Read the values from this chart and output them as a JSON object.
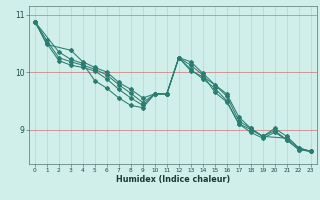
{
  "xlabel": "Humidex (Indice chaleur)",
  "bg_color": "#d0eeea",
  "grid_color_v": "#b0d8d0",
  "grid_color_h": "#cc8888",
  "line_color": "#2a7d70",
  "xlim": [
    -0.5,
    23.5
  ],
  "ylim": [
    8.4,
    11.15
  ],
  "yticks": [
    9,
    10,
    11
  ],
  "xticks": [
    0,
    1,
    2,
    3,
    4,
    5,
    6,
    7,
    8,
    9,
    10,
    11,
    12,
    13,
    14,
    15,
    16,
    17,
    18,
    19,
    20,
    21,
    22,
    23
  ],
  "series1": [
    [
      0,
      10.88
    ],
    [
      1,
      10.55
    ],
    [
      2,
      10.25
    ],
    [
      3,
      10.18
    ],
    [
      4,
      10.12
    ],
    [
      5,
      10.05
    ],
    [
      6,
      9.95
    ],
    [
      7,
      9.78
    ],
    [
      8,
      9.63
    ],
    [
      9,
      9.47
    ],
    [
      10,
      9.62
    ],
    [
      11,
      9.62
    ],
    [
      12,
      10.25
    ],
    [
      13,
      10.02
    ],
    [
      14,
      9.92
    ],
    [
      15,
      9.78
    ],
    [
      16,
      9.62
    ],
    [
      17,
      9.22
    ],
    [
      18,
      9.02
    ],
    [
      19,
      8.88
    ],
    [
      20,
      9.02
    ],
    [
      21,
      8.88
    ],
    [
      22,
      8.68
    ],
    [
      23,
      8.62
    ]
  ],
  "series2": [
    [
      0,
      10.88
    ],
    [
      1,
      10.5
    ],
    [
      2,
      10.2
    ],
    [
      3,
      10.12
    ],
    [
      4,
      10.08
    ],
    [
      5,
      10.02
    ],
    [
      6,
      9.88
    ],
    [
      7,
      9.7
    ],
    [
      8,
      9.55
    ],
    [
      9,
      9.42
    ],
    [
      10,
      9.62
    ],
    [
      11,
      9.62
    ],
    [
      12,
      10.25
    ],
    [
      13,
      10.05
    ],
    [
      14,
      9.88
    ],
    [
      15,
      9.72
    ],
    [
      16,
      9.5
    ],
    [
      17,
      9.1
    ],
    [
      18,
      8.95
    ],
    [
      19,
      8.85
    ],
    [
      20,
      8.95
    ],
    [
      21,
      8.82
    ],
    [
      22,
      8.65
    ],
    [
      23,
      8.62
    ]
  ],
  "series3": [
    [
      0,
      10.88
    ],
    [
      2,
      10.35
    ],
    [
      3,
      10.22
    ],
    [
      4,
      10.15
    ],
    [
      5,
      9.85
    ],
    [
      6,
      9.72
    ],
    [
      7,
      9.55
    ],
    [
      8,
      9.42
    ],
    [
      9,
      9.38
    ],
    [
      10,
      9.62
    ],
    [
      11,
      9.62
    ],
    [
      12,
      10.25
    ],
    [
      13,
      10.12
    ],
    [
      14,
      9.95
    ],
    [
      15,
      9.65
    ],
    [
      16,
      9.48
    ],
    [
      17,
      9.1
    ],
    [
      18,
      9.0
    ],
    [
      19,
      8.88
    ],
    [
      20,
      8.98
    ],
    [
      21,
      8.82
    ],
    [
      22,
      8.65
    ],
    [
      23,
      8.62
    ]
  ],
  "series4": [
    [
      0,
      10.88
    ],
    [
      1,
      10.48
    ],
    [
      3,
      10.38
    ],
    [
      4,
      10.18
    ],
    [
      5,
      10.08
    ],
    [
      6,
      10.0
    ],
    [
      7,
      9.82
    ],
    [
      8,
      9.7
    ],
    [
      9,
      9.55
    ],
    [
      10,
      9.62
    ],
    [
      11,
      9.62
    ],
    [
      12,
      10.25
    ],
    [
      13,
      10.18
    ],
    [
      14,
      9.98
    ],
    [
      16,
      9.58
    ],
    [
      17,
      9.15
    ],
    [
      18,
      9.02
    ],
    [
      19,
      8.88
    ],
    [
      21,
      8.85
    ],
    [
      22,
      8.68
    ],
    [
      23,
      8.62
    ]
  ]
}
